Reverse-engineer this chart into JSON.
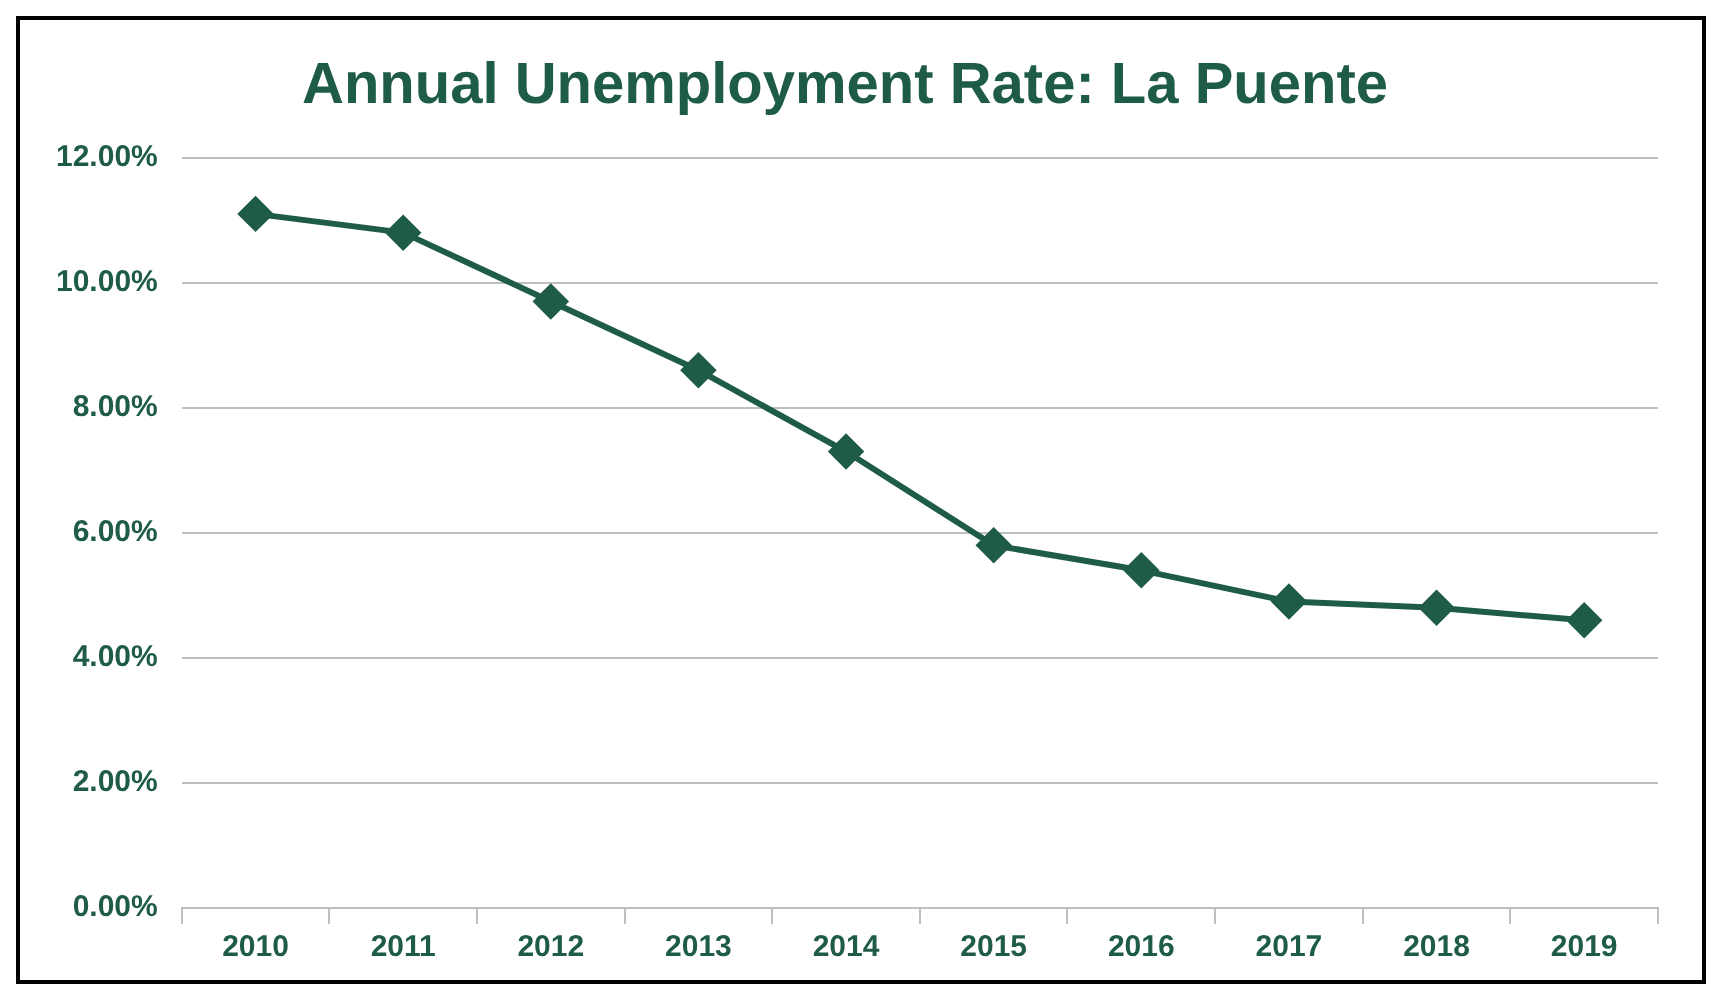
{
  "chart_data": {
    "type": "line",
    "title": "Annual Unemployment Rate: La Puente",
    "categories": [
      "2010",
      "2011",
      "2012",
      "2013",
      "2014",
      "2015",
      "2016",
      "2017",
      "2018",
      "2019"
    ],
    "series": [
      {
        "color": "#1e5c46",
        "values": [
          11.1,
          10.8,
          9.7,
          8.6,
          7.3,
          5.8,
          5.4,
          4.9,
          4.8,
          4.6
        ]
      }
    ],
    "ylim": [
      0,
      12
    ],
    "yticks": [
      {
        "value": 0,
        "label": "0.00%"
      },
      {
        "value": 2,
        "label": "2.00%"
      },
      {
        "value": 4,
        "label": "4.00%"
      },
      {
        "value": 6,
        "label": "6.00%"
      },
      {
        "value": 8,
        "label": "8.00%"
      },
      {
        "value": 10,
        "label": "10.00%"
      },
      {
        "value": 12,
        "label": "12.00%"
      }
    ],
    "grid": "y",
    "legend": false,
    "marker": "diamond",
    "line_style": "solid"
  }
}
